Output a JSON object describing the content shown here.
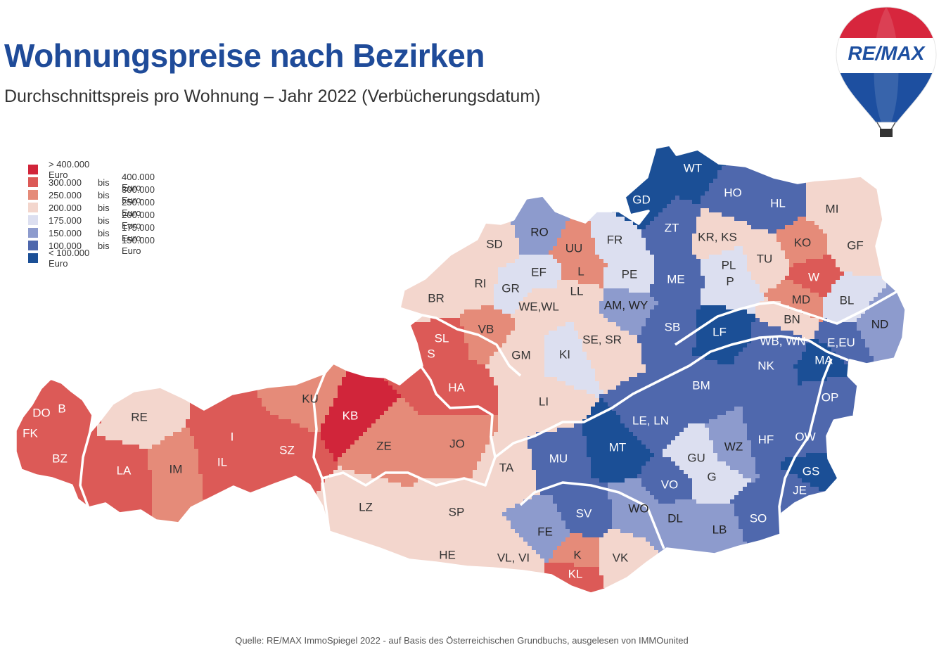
{
  "title": "Wohnungspreise nach Bezirken",
  "subtitle": "Durchschnittspreis pro Wohnung – Jahr 2022 (Verbücherungsdatum)",
  "logo_text": "RE/MAX",
  "source": "Quelle: RE/MAX ImmoSpiegel 2022 - auf Basis des Österreichischen Grundbuchs, ausgelesen von IMMOunited",
  "legend": [
    {
      "color": "#d1253a",
      "from": "> 400.000 Euro",
      "bis": "",
      "to": ""
    },
    {
      "color": "#dc5a57",
      "from": "300.000",
      "bis": "bis",
      "to": "400.000  Euro"
    },
    {
      "color": "#e58b79",
      "from": "250.000",
      "bis": "bis",
      "to": "300.000  Euro"
    },
    {
      "color": "#f3d6cd",
      "from": "200.000",
      "bis": "bis",
      "to": "250.000  Euro"
    },
    {
      "color": "#dcdff0",
      "from": "175.000",
      "bis": "bis",
      "to": "200.000  Euro"
    },
    {
      "color": "#8d9bcd",
      "from": "150.000",
      "bis": "bis",
      "to": "175.000  Euro"
    },
    {
      "color": "#4f68ad",
      "from": "100.000",
      "bis": "bis",
      "to": "150.000  Euro"
    },
    {
      "color": "#1b4f96",
      "from": "< 100.000 Euro",
      "bis": "",
      "to": ""
    }
  ],
  "districts": [
    {
      "code": "WT",
      "cls": 7
    },
    {
      "code": "GD",
      "cls": 7
    },
    {
      "code": "HO",
      "cls": 6
    },
    {
      "code": "HL",
      "cls": 6
    },
    {
      "code": "MI",
      "cls": 3
    },
    {
      "code": "ZT",
      "cls": 6
    },
    {
      "code": "KR, KS",
      "cls": 3
    },
    {
      "code": "KO",
      "cls": 2
    },
    {
      "code": "GF",
      "cls": 3
    },
    {
      "code": "RO",
      "cls": 5
    },
    {
      "code": "UU",
      "cls": 2
    },
    {
      "code": "FR",
      "cls": 4
    },
    {
      "code": "SD",
      "cls": 3
    },
    {
      "code": "EF",
      "cls": 4
    },
    {
      "code": "L",
      "cls": 2
    },
    {
      "code": "PE",
      "cls": 4
    },
    {
      "code": "ME",
      "cls": 6
    },
    {
      "code": "PL",
      "cls": 4
    },
    {
      "code": "P",
      "cls": 4
    },
    {
      "code": "TU",
      "cls": 3
    },
    {
      "code": "W",
      "cls": 1
    },
    {
      "code": "RI",
      "cls": 3
    },
    {
      "code": "GR",
      "cls": 4
    },
    {
      "code": "LL",
      "cls": 3
    },
    {
      "code": "BR",
      "cls": 3
    },
    {
      "code": "WE,WL",
      "cls": 3
    },
    {
      "code": "AM, WY",
      "cls": 5
    },
    {
      "code": "MD",
      "cls": 2
    },
    {
      "code": "BL",
      "cls": 4
    },
    {
      "code": "BN",
      "cls": 3
    },
    {
      "code": "SB",
      "cls": 6
    },
    {
      "code": "LF",
      "cls": 7
    },
    {
      "code": "ND",
      "cls": 5
    },
    {
      "code": "SL",
      "cls": 1
    },
    {
      "code": "VB",
      "cls": 2
    },
    {
      "code": "KI",
      "cls": 4
    },
    {
      "code": "SE, SR",
      "cls": 3
    },
    {
      "code": "WB, WN",
      "cls": 6
    },
    {
      "code": "E,EU",
      "cls": 6
    },
    {
      "code": "S",
      "cls": 1
    },
    {
      "code": "GM",
      "cls": 3
    },
    {
      "code": "NK",
      "cls": 6
    },
    {
      "code": "MA",
      "cls": 7
    },
    {
      "code": "HA",
      "cls": 1
    },
    {
      "code": "BM",
      "cls": 6
    },
    {
      "code": "OP",
      "cls": 6
    },
    {
      "code": "LI",
      "cls": 3
    },
    {
      "code": "DO",
      "cls": 1
    },
    {
      "code": "B",
      "cls": 1
    },
    {
      "code": "RE",
      "cls": 3
    },
    {
      "code": "KU",
      "cls": 2
    },
    {
      "code": "KB",
      "cls": 0
    },
    {
      "code": "FK",
      "cls": 1
    },
    {
      "code": "I",
      "cls": 1
    },
    {
      "code": "LE, LN",
      "cls": 6
    },
    {
      "code": "ZE",
      "cls": 2
    },
    {
      "code": "JO",
      "cls": 2
    },
    {
      "code": "SZ",
      "cls": 1
    },
    {
      "code": "BZ",
      "cls": 1
    },
    {
      "code": "IL",
      "cls": 1
    },
    {
      "code": "MT",
      "cls": 7
    },
    {
      "code": "WZ",
      "cls": 5
    },
    {
      "code": "HF",
      "cls": 6
    },
    {
      "code": "OW",
      "cls": 6
    },
    {
      "code": "GU",
      "cls": 4
    },
    {
      "code": "MU",
      "cls": 6
    },
    {
      "code": "LA",
      "cls": 1
    },
    {
      "code": "IM",
      "cls": 2
    },
    {
      "code": "TA",
      "cls": 3
    },
    {
      "code": "G",
      "cls": 4
    },
    {
      "code": "GS",
      "cls": 7
    },
    {
      "code": "VO",
      "cls": 6
    },
    {
      "code": "JE",
      "cls": 6
    },
    {
      "code": "WO",
      "cls": 5
    },
    {
      "code": "LZ",
      "cls": 3
    },
    {
      "code": "SV",
      "cls": 6
    },
    {
      "code": "SP",
      "cls": 3
    },
    {
      "code": "DL",
      "cls": 5
    },
    {
      "code": "SO",
      "cls": 6
    },
    {
      "code": "LB",
      "cls": 5
    },
    {
      "code": "FE",
      "cls": 5
    },
    {
      "code": "HE",
      "cls": 3
    },
    {
      "code": "VL, VI",
      "cls": 3
    },
    {
      "code": "K",
      "cls": 2
    },
    {
      "code": "VK",
      "cls": 3
    },
    {
      "code": "KL",
      "cls": 1
    }
  ]
}
